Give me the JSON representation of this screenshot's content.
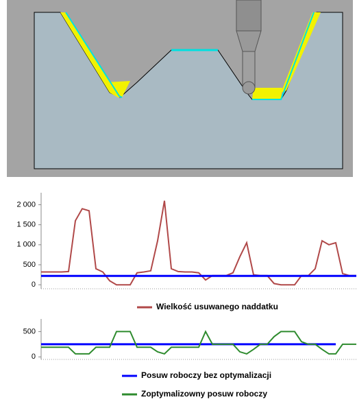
{
  "chart_data": [
    {
      "type": "line",
      "categories": [
        null,
        null,
        null,
        null,
        null,
        null,
        null,
        null,
        null,
        null,
        null,
        null,
        null,
        null,
        null,
        null,
        null,
        null,
        null,
        null,
        null,
        null,
        null,
        null,
        null,
        null,
        null,
        null,
        null,
        null,
        null,
        null,
        null,
        null,
        null,
        null,
        null,
        null,
        null,
        null,
        null,
        null,
        null,
        null,
        null,
        null,
        null
      ],
      "series": [
        {
          "name": "Wielkość usuwanego naddatku",
          "color": "#b04848",
          "values": [
            320,
            320,
            320,
            320,
            330,
            1600,
            1900,
            1850,
            400,
            320,
            100,
            0,
            0,
            0,
            300,
            320,
            350,
            1100,
            2100,
            400,
            330,
            320,
            320,
            300,
            120,
            230,
            230,
            230,
            300,
            700,
            1050,
            250,
            230,
            230,
            30,
            0,
            0,
            0,
            230,
            230,
            400,
            1100,
            1000,
            1050,
            280,
            230,
            230
          ]
        },
        {
          "color": "#0000ff",
          "values": [
            220,
            220,
            220,
            220,
            220,
            220,
            220,
            220,
            220,
            220,
            220,
            220,
            220,
            220,
            220,
            220,
            220,
            220,
            220,
            220,
            220,
            220,
            220,
            220,
            220,
            220,
            220,
            220,
            220,
            220,
            220,
            220,
            220,
            220,
            220,
            220,
            220,
            220,
            220,
            220,
            220,
            220,
            220,
            220,
            220,
            220,
            220
          ]
        }
      ],
      "ylim": [
        -100,
        2300
      ],
      "yticks": [
        0,
        500,
        {
          "value": 1000,
          "label": "1 000"
        },
        {
          "value": 1500,
          "label": "1 500"
        },
        {
          "value": 2000,
          "label": "2 000"
        }
      ]
    },
    {
      "type": "line",
      "categories": [
        null,
        null,
        null,
        null,
        null,
        null,
        null,
        null,
        null,
        null,
        null,
        null,
        null,
        null,
        null,
        null,
        null,
        null,
        null,
        null,
        null,
        null,
        null,
        null,
        null,
        null,
        null,
        null,
        null,
        null,
        null,
        null,
        null,
        null,
        null,
        null,
        null,
        null,
        null,
        null,
        null,
        null,
        null,
        null,
        null,
        null,
        null
      ],
      "series": [
        {
          "name": "Posuw roboczy bez optymalizacji",
          "color": "#0000ff",
          "values": [
            250,
            250,
            250,
            250,
            250,
            250,
            250,
            250,
            250,
            250,
            250,
            250,
            250,
            250,
            250,
            250,
            250,
            250,
            250,
            250,
            250,
            250,
            250,
            250,
            250,
            250,
            250,
            250,
            250,
            250,
            250,
            250,
            250,
            250,
            250,
            250,
            250,
            250,
            250,
            250,
            250,
            250,
            250,
            250,
            null,
            null,
            null
          ]
        },
        {
          "name": "Zoptymalizowny posuw roboczy",
          "color": "#2e8b2e",
          "values": [
            190,
            190,
            190,
            190,
            190,
            60,
            60,
            60,
            190,
            190,
            190,
            500,
            500,
            500,
            190,
            190,
            190,
            100,
            60,
            190,
            190,
            190,
            190,
            190,
            500,
            250,
            250,
            250,
            250,
            100,
            60,
            150,
            250,
            250,
            400,
            500,
            500,
            500,
            300,
            250,
            250,
            150,
            60,
            60,
            250,
            250,
            250
          ]
        }
      ],
      "ylim": [
        -50,
        750
      ],
      "yticks": [
        0,
        500
      ]
    }
  ]
}
